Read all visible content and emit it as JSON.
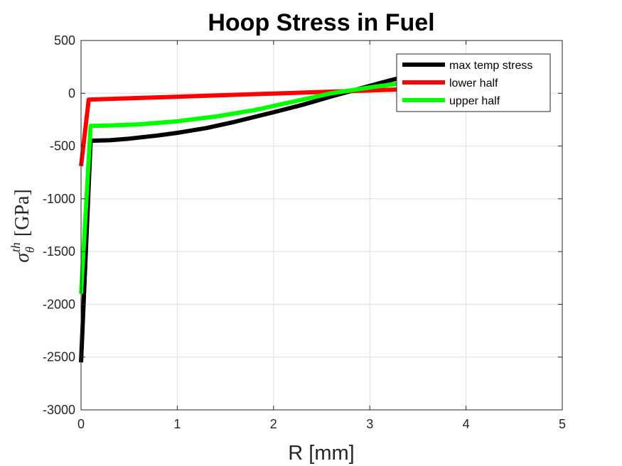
{
  "chart_data": {
    "type": "line",
    "title": "Hoop Stress in Fuel",
    "xlabel": "R [mm]",
    "ylabel_symbol": "σ",
    "ylabel_sub": "θ",
    "ylabel_sup": "th",
    "ylabel_unit": "[GPa]",
    "xlim": [
      0,
      5
    ],
    "ylim": [
      -3000,
      500
    ],
    "xticks": [
      0,
      1,
      2,
      3,
      4,
      5
    ],
    "yticks": [
      -3000,
      -2500,
      -2000,
      -1500,
      -1000,
      -500,
      0,
      500
    ],
    "grid": true,
    "legend_position": "top-right",
    "series": [
      {
        "name": "max temp stress",
        "color": "#000000",
        "x": [
          0.0,
          0.1,
          0.3,
          0.5,
          0.8,
          1.0,
          1.3,
          1.6,
          2.0,
          2.3,
          2.6,
          2.8,
          3.0,
          3.2,
          3.45
        ],
        "y": [
          -2550,
          -450,
          -445,
          -430,
          -400,
          -375,
          -330,
          -270,
          -180,
          -110,
          -30,
          20,
          70,
          120,
          175
        ]
      },
      {
        "name": "lower half",
        "color": "#ff0000",
        "x": [
          0.0,
          0.08,
          3.45
        ],
        "y": [
          -690,
          -60,
          40
        ]
      },
      {
        "name": "upper half",
        "color": "#00ff00",
        "x": [
          0.0,
          0.1,
          0.3,
          0.6,
          1.0,
          1.4,
          1.8,
          2.2,
          2.6,
          3.0,
          3.45
        ],
        "y": [
          -1900,
          -310,
          -305,
          -295,
          -265,
          -220,
          -160,
          -80,
          0,
          55,
          110
        ]
      }
    ]
  }
}
